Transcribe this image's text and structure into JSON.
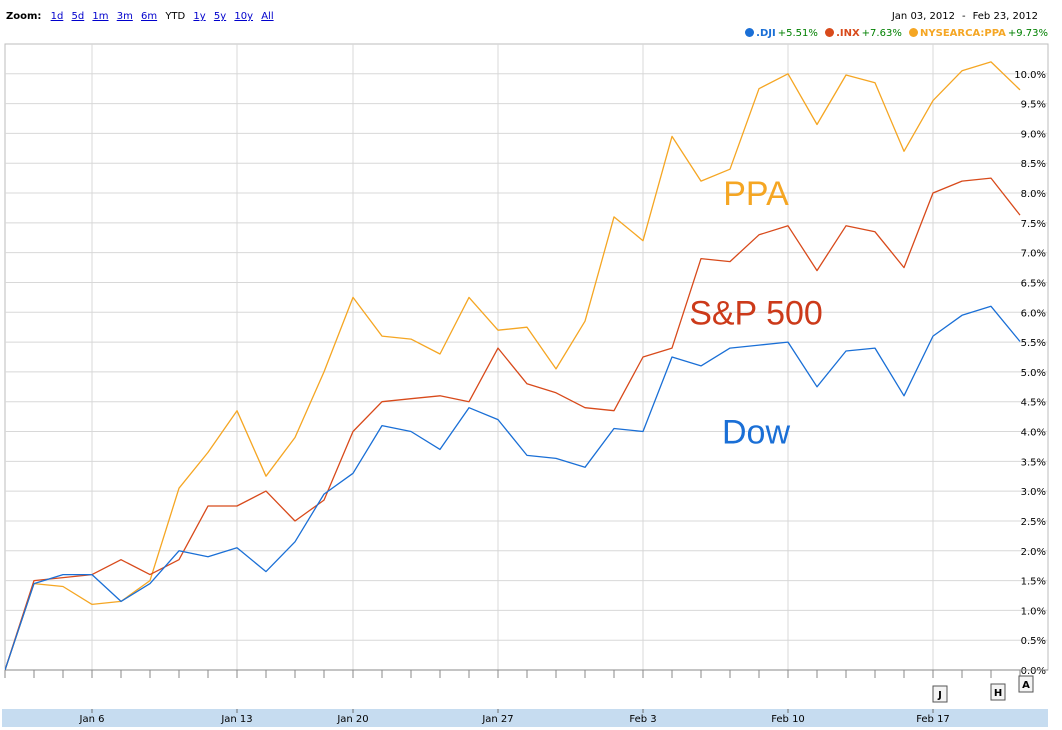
{
  "toolbar": {
    "zoom_label": "Zoom:",
    "zoom_options": [
      "1d",
      "5d",
      "1m",
      "3m",
      "6m",
      "YTD",
      "1y",
      "5y",
      "10y",
      "All"
    ],
    "zoom_selected": "YTD",
    "range_start": "Jan 03, 2012",
    "range_separator": "-",
    "range_end": "Feb 23, 2012"
  },
  "legend": [
    {
      "name": ".DJI",
      "change": "+5.51%",
      "color": "#1a6fd6"
    },
    {
      "name": ".INX",
      "change": "+7.63%",
      "color": "#d84a1b"
    },
    {
      "name": "NYSEARCA:PPA",
      "change": "+9.73%",
      "color": "#f5a623"
    }
  ],
  "annotations": [
    {
      "text": "PPA",
      "series": "NYSEARCA:PPA",
      "color": "#f5a623",
      "at": [
        "Feb 7",
        8.0
      ]
    },
    {
      "text": "S&P 500",
      "series": ".INX",
      "color": "#cc3a1a",
      "at": [
        "Feb 7",
        6.0
      ]
    },
    {
      "text": "Dow",
      "series": ".DJI",
      "color": "#1a6fd6",
      "at": [
        "Feb 7",
        4.0
      ]
    }
  ],
  "flags": [
    "J",
    "H",
    "A"
  ],
  "colors": {
    "grid": "#d8d8d8",
    "axis_band": "#c6dcf0"
  },
  "chart_data": {
    "type": "line",
    "ylim": [
      0,
      10.5
    ],
    "yticks": [
      "0.0%",
      "0.5%",
      "1.0%",
      "1.5%",
      "2.0%",
      "2.5%",
      "3.0%",
      "3.5%",
      "4.0%",
      "4.5%",
      "5.0%",
      "5.5%",
      "6.0%",
      "6.5%",
      "7.0%",
      "7.5%",
      "8.0%",
      "8.5%",
      "9.0%",
      "9.5%",
      "10.0%"
    ],
    "xticks": [
      "Jan 6",
      "Jan 13",
      "Jan 20",
      "Jan 27",
      "Feb 3",
      "Feb 10",
      "Feb 17"
    ],
    "x": [
      "Jan 3",
      "Jan 4",
      "Jan 5",
      "Jan 6",
      "Jan 9",
      "Jan 10",
      "Jan 11",
      "Jan 12",
      "Jan 13",
      "Jan 17",
      "Jan 18",
      "Jan 19",
      "Jan 20",
      "Jan 23",
      "Jan 24",
      "Jan 25",
      "Jan 26",
      "Jan 27",
      "Jan 30",
      "Jan 31",
      "Feb 1",
      "Feb 2",
      "Feb 3",
      "Feb 6",
      "Feb 7",
      "Feb 8",
      "Feb 9",
      "Feb 10",
      "Feb 13",
      "Feb 14",
      "Feb 15",
      "Feb 16",
      "Feb 17",
      "Feb 21",
      "Feb 22",
      "Feb 23"
    ],
    "series": [
      {
        "name": "NYSEARCA:PPA",
        "color": "#f5a623",
        "values": [
          0.0,
          1.45,
          1.4,
          1.1,
          1.15,
          1.5,
          3.05,
          3.65,
          4.35,
          3.25,
          3.9,
          5.0,
          6.25,
          5.6,
          5.55,
          5.3,
          6.25,
          5.7,
          5.75,
          5.05,
          5.85,
          7.6,
          7.2,
          8.95,
          8.2,
          8.4,
          9.75,
          10.0,
          9.15,
          9.98,
          9.85,
          8.7,
          9.55,
          10.05,
          10.2,
          9.73
        ]
      },
      {
        "name": ".INX",
        "color": "#d84a1b",
        "values": [
          0.0,
          1.5,
          1.55,
          1.6,
          1.85,
          1.6,
          1.85,
          2.75,
          2.75,
          3.0,
          2.5,
          2.85,
          4.0,
          4.5,
          4.55,
          4.6,
          4.5,
          5.4,
          4.8,
          4.65,
          4.4,
          4.35,
          5.25,
          5.4,
          6.9,
          6.85,
          7.3,
          7.45,
          6.7,
          7.45,
          7.35,
          6.75,
          8.0,
          8.2,
          8.25,
          7.63
        ]
      },
      {
        "name": ".DJI",
        "color": "#1a6fd6",
        "values": [
          0.0,
          1.45,
          1.6,
          1.6,
          1.15,
          1.45,
          2.0,
          1.9,
          2.05,
          1.65,
          2.15,
          2.95,
          3.3,
          4.1,
          4.0,
          3.7,
          4.4,
          4.2,
          3.6,
          3.55,
          3.4,
          4.05,
          4.0,
          5.25,
          5.1,
          5.4,
          5.45,
          5.5,
          4.75,
          5.35,
          5.4,
          4.6,
          5.6,
          5.95,
          6.1,
          5.51
        ]
      }
    ]
  }
}
